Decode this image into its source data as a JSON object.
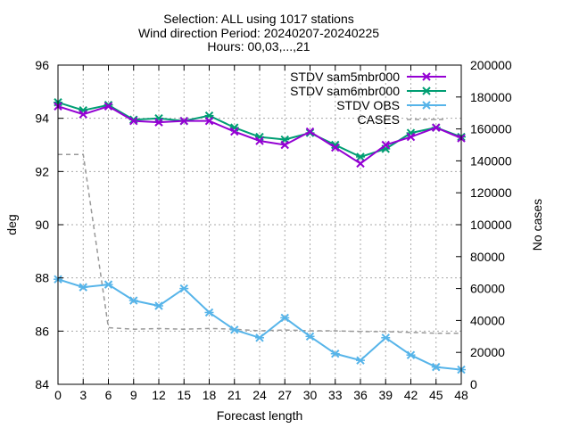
{
  "chart_data": {
    "type": "line",
    "title_lines": [
      "Selection: ALL using  1017 stations",
      "Wind direction   Period: 20240207-20240225",
      "Hours: 00,03,...,21"
    ],
    "xlabel": "Forecast length",
    "ylabel": "deg",
    "y2label": "No cases",
    "x": [
      0,
      3,
      6,
      9,
      12,
      15,
      18,
      21,
      24,
      27,
      30,
      33,
      36,
      39,
      42,
      45,
      48
    ],
    "xlim": [
      0,
      48
    ],
    "ylim": [
      84,
      96
    ],
    "y2lim": [
      0,
      200000
    ],
    "x_ticks": [
      "0",
      "3",
      "6",
      "9",
      "12",
      "15",
      "18",
      "21",
      "24",
      "27",
      "30",
      "33",
      "36",
      "39",
      "42",
      "45",
      "48"
    ],
    "y_ticks": [
      "84",
      "86",
      "88",
      "90",
      "92",
      "94",
      "96"
    ],
    "y2_ticks": [
      "0",
      "20000",
      "40000",
      "60000",
      "80000",
      "100000",
      "120000",
      "140000",
      "160000",
      "180000",
      "200000"
    ],
    "grid": true,
    "legend_position": "top-right",
    "series": [
      {
        "name": "STDV sam5mbr000",
        "axis": "y",
        "color": "#9400d3",
        "marker": "x",
        "values": [
          94.45,
          94.15,
          94.45,
          93.9,
          93.85,
          93.9,
          93.9,
          93.5,
          93.15,
          93.0,
          93.5,
          92.9,
          92.3,
          93.0,
          93.3,
          93.65,
          93.25
        ]
      },
      {
        "name": "STDV sam6mbr000",
        "axis": "y",
        "color": "#009e73",
        "marker": "asterisk",
        "values": [
          94.6,
          94.3,
          94.5,
          93.95,
          94.0,
          93.9,
          94.1,
          93.65,
          93.3,
          93.2,
          93.45,
          93.0,
          92.55,
          92.85,
          93.45,
          93.65,
          93.3
        ]
      },
      {
        "name": "STDV OBS",
        "axis": "y",
        "color": "#56b4e9",
        "marker": "asterisk",
        "values": [
          87.95,
          87.65,
          87.75,
          87.15,
          86.95,
          87.6,
          86.7,
          86.05,
          85.75,
          86.5,
          85.8,
          85.15,
          84.9,
          85.75,
          85.1,
          84.65,
          84.55
        ]
      },
      {
        "name": "CASES",
        "axis": "y2",
        "color": "#999999",
        "style": "dashed",
        "values": [
          144000,
          144000,
          35500,
          34500,
          35000,
          34500,
          35000,
          34500,
          33500,
          34000,
          33500,
          33500,
          33000,
          33000,
          32500,
          32000,
          32000
        ]
      }
    ]
  }
}
